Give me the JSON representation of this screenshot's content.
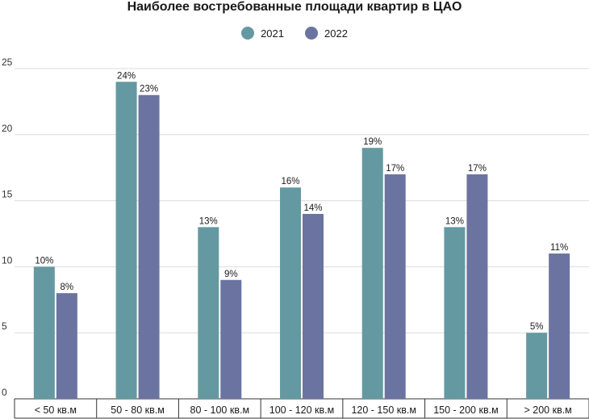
{
  "chart_data": {
    "type": "bar",
    "title": "Наиболее востребованные площади квартир в ЦАО",
    "categories": [
      "< 50 кв.м",
      "50 - 80 кв.м",
      "80 - 100 кв.м",
      "100 - 120 кв.м",
      "120 - 150 кв.м",
      "150 - 200 кв.м",
      "> 200 кв.м"
    ],
    "series": [
      {
        "name": "2021",
        "color": "#6599a1",
        "values": [
          10,
          24,
          13,
          16,
          19,
          13,
          5
        ],
        "labels": [
          "10%",
          "24%",
          "13%",
          "16%",
          "19%",
          "13%",
          "5%"
        ]
      },
      {
        "name": "2022",
        "color": "#6b74a0",
        "values": [
          8,
          23,
          9,
          14,
          17,
          17,
          11
        ],
        "labels": [
          "8%",
          "23%",
          "9%",
          "14%",
          "17%",
          "17%",
          "11%"
        ]
      }
    ],
    "ylim": [
      0,
      25
    ],
    "yticks": [
      "0",
      "5",
      "10",
      "15",
      "20",
      "25"
    ],
    "xlabel": "",
    "ylabel": "",
    "grid": true,
    "legend_position": "top-center"
  }
}
